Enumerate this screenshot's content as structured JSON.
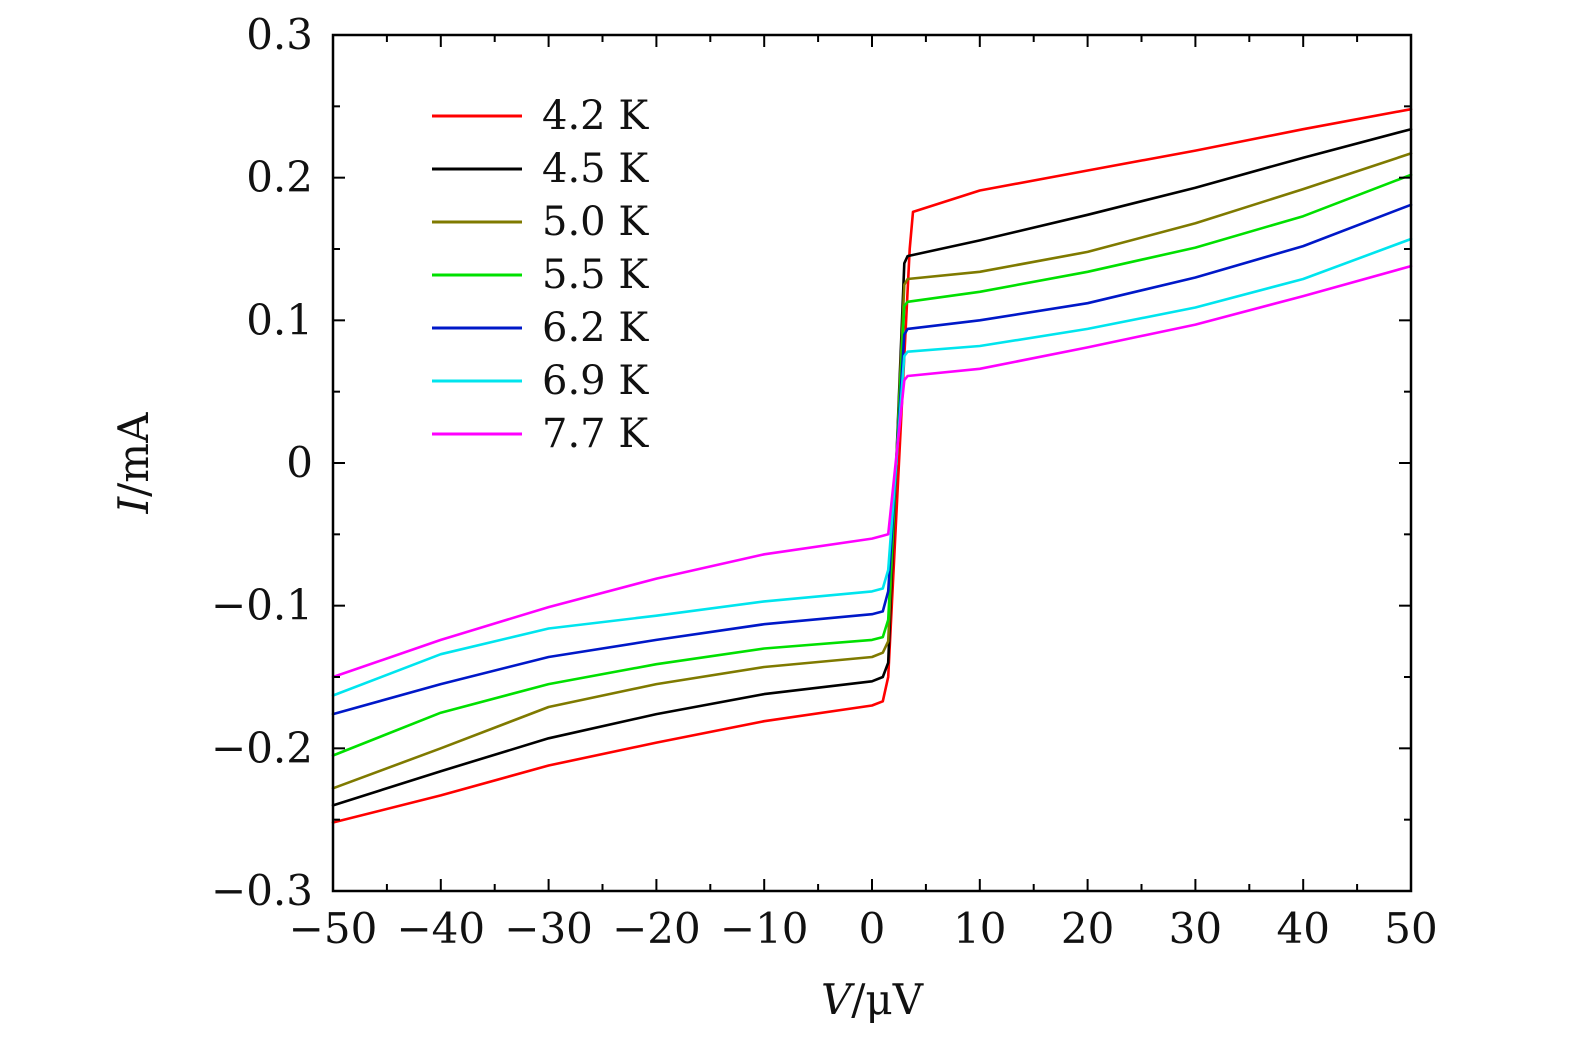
{
  "chart_data": {
    "type": "line",
    "title": "",
    "xlabel": {
      "var": "V",
      "unit": "/μV"
    },
    "ylabel": {
      "var": "I",
      "unit": "/mA"
    },
    "xlim": [
      -50,
      50
    ],
    "ylim": [
      -0.3,
      0.3
    ],
    "x_ticks": [
      -50,
      -40,
      -30,
      -20,
      -10,
      0,
      10,
      20,
      30,
      40,
      50
    ],
    "x_tick_labels": [
      "−50",
      "−40",
      "−30",
      "−20",
      "−10",
      "0",
      "10",
      "20",
      "30",
      "40",
      "50"
    ],
    "y_ticks": [
      -0.3,
      -0.2,
      -0.1,
      0,
      0.1,
      0.2,
      0.3
    ],
    "y_tick_labels": [
      "−0.3",
      "−0.2",
      "−0.1",
      "0",
      "0.1",
      "0.2",
      "0.3"
    ],
    "grid": false,
    "legend_position": "top-left",
    "series": [
      {
        "name": "4.2 K",
        "color": "#ff0000",
        "x": [
          -50,
          -40,
          -30,
          -20,
          -10,
          0,
          1,
          1.5,
          3.5,
          3.8,
          10,
          20,
          30,
          40,
          50
        ],
        "y": [
          -0.252,
          -0.233,
          -0.212,
          -0.196,
          -0.181,
          -0.17,
          -0.167,
          -0.15,
          0.15,
          0.176,
          0.191,
          0.205,
          0.219,
          0.234,
          0.248
        ]
      },
      {
        "name": "4.5 K",
        "color": "#000000",
        "x": [
          -50,
          -40,
          -30,
          -20,
          -10,
          0,
          1,
          1.5,
          3.0,
          3.3,
          10,
          20,
          30,
          40,
          50
        ],
        "y": [
          -0.24,
          -0.216,
          -0.193,
          -0.176,
          -0.162,
          -0.153,
          -0.15,
          -0.14,
          0.14,
          0.145,
          0.156,
          0.174,
          0.193,
          0.214,
          0.234
        ]
      },
      {
        "name": "5.0 K",
        "color": "#7f7a00",
        "x": [
          -50,
          -40,
          -30,
          -20,
          -10,
          0,
          1,
          1.5,
          3.0,
          3.3,
          10,
          20,
          30,
          40,
          50
        ],
        "y": [
          -0.228,
          -0.2,
          -0.171,
          -0.155,
          -0.143,
          -0.136,
          -0.133,
          -0.125,
          0.125,
          0.129,
          0.134,
          0.148,
          0.168,
          0.192,
          0.217
        ]
      },
      {
        "name": "5.5 K",
        "color": "#00e000",
        "x": [
          -50,
          -40,
          -30,
          -20,
          -10,
          0,
          1,
          1.5,
          3.0,
          3.3,
          10,
          20,
          30,
          40,
          50
        ],
        "y": [
          -0.205,
          -0.175,
          -0.155,
          -0.141,
          -0.13,
          -0.124,
          -0.122,
          -0.11,
          0.11,
          0.113,
          0.12,
          0.134,
          0.151,
          0.173,
          0.202
        ]
      },
      {
        "name": "6.2 K",
        "color": "#0018c8",
        "x": [
          -50,
          -40,
          -30,
          -20,
          -10,
          0,
          1,
          1.5,
          3.0,
          3.3,
          10,
          20,
          30,
          40,
          50
        ],
        "y": [
          -0.176,
          -0.155,
          -0.136,
          -0.124,
          -0.113,
          -0.106,
          -0.104,
          -0.09,
          0.09,
          0.094,
          0.1,
          0.112,
          0.13,
          0.152,
          0.181
        ]
      },
      {
        "name": "6.9 K",
        "color": "#00e5ee",
        "x": [
          -50,
          -40,
          -30,
          -20,
          -10,
          0,
          1,
          1.5,
          3.0,
          3.3,
          10,
          20,
          30,
          40,
          50
        ],
        "y": [
          -0.163,
          -0.134,
          -0.116,
          -0.107,
          -0.097,
          -0.09,
          -0.088,
          -0.075,
          0.075,
          0.078,
          0.082,
          0.094,
          0.109,
          0.129,
          0.157
        ]
      },
      {
        "name": "7.7 K",
        "color": "#ff00ff",
        "x": [
          -50,
          -40,
          -30,
          -20,
          -10,
          0,
          1,
          1.5,
          3.0,
          3.3,
          10,
          20,
          30,
          40,
          50
        ],
        "y": [
          -0.15,
          -0.124,
          -0.101,
          -0.081,
          -0.064,
          -0.053,
          -0.051,
          -0.05,
          0.058,
          0.061,
          0.066,
          0.081,
          0.097,
          0.117,
          0.138
        ]
      }
    ]
  }
}
